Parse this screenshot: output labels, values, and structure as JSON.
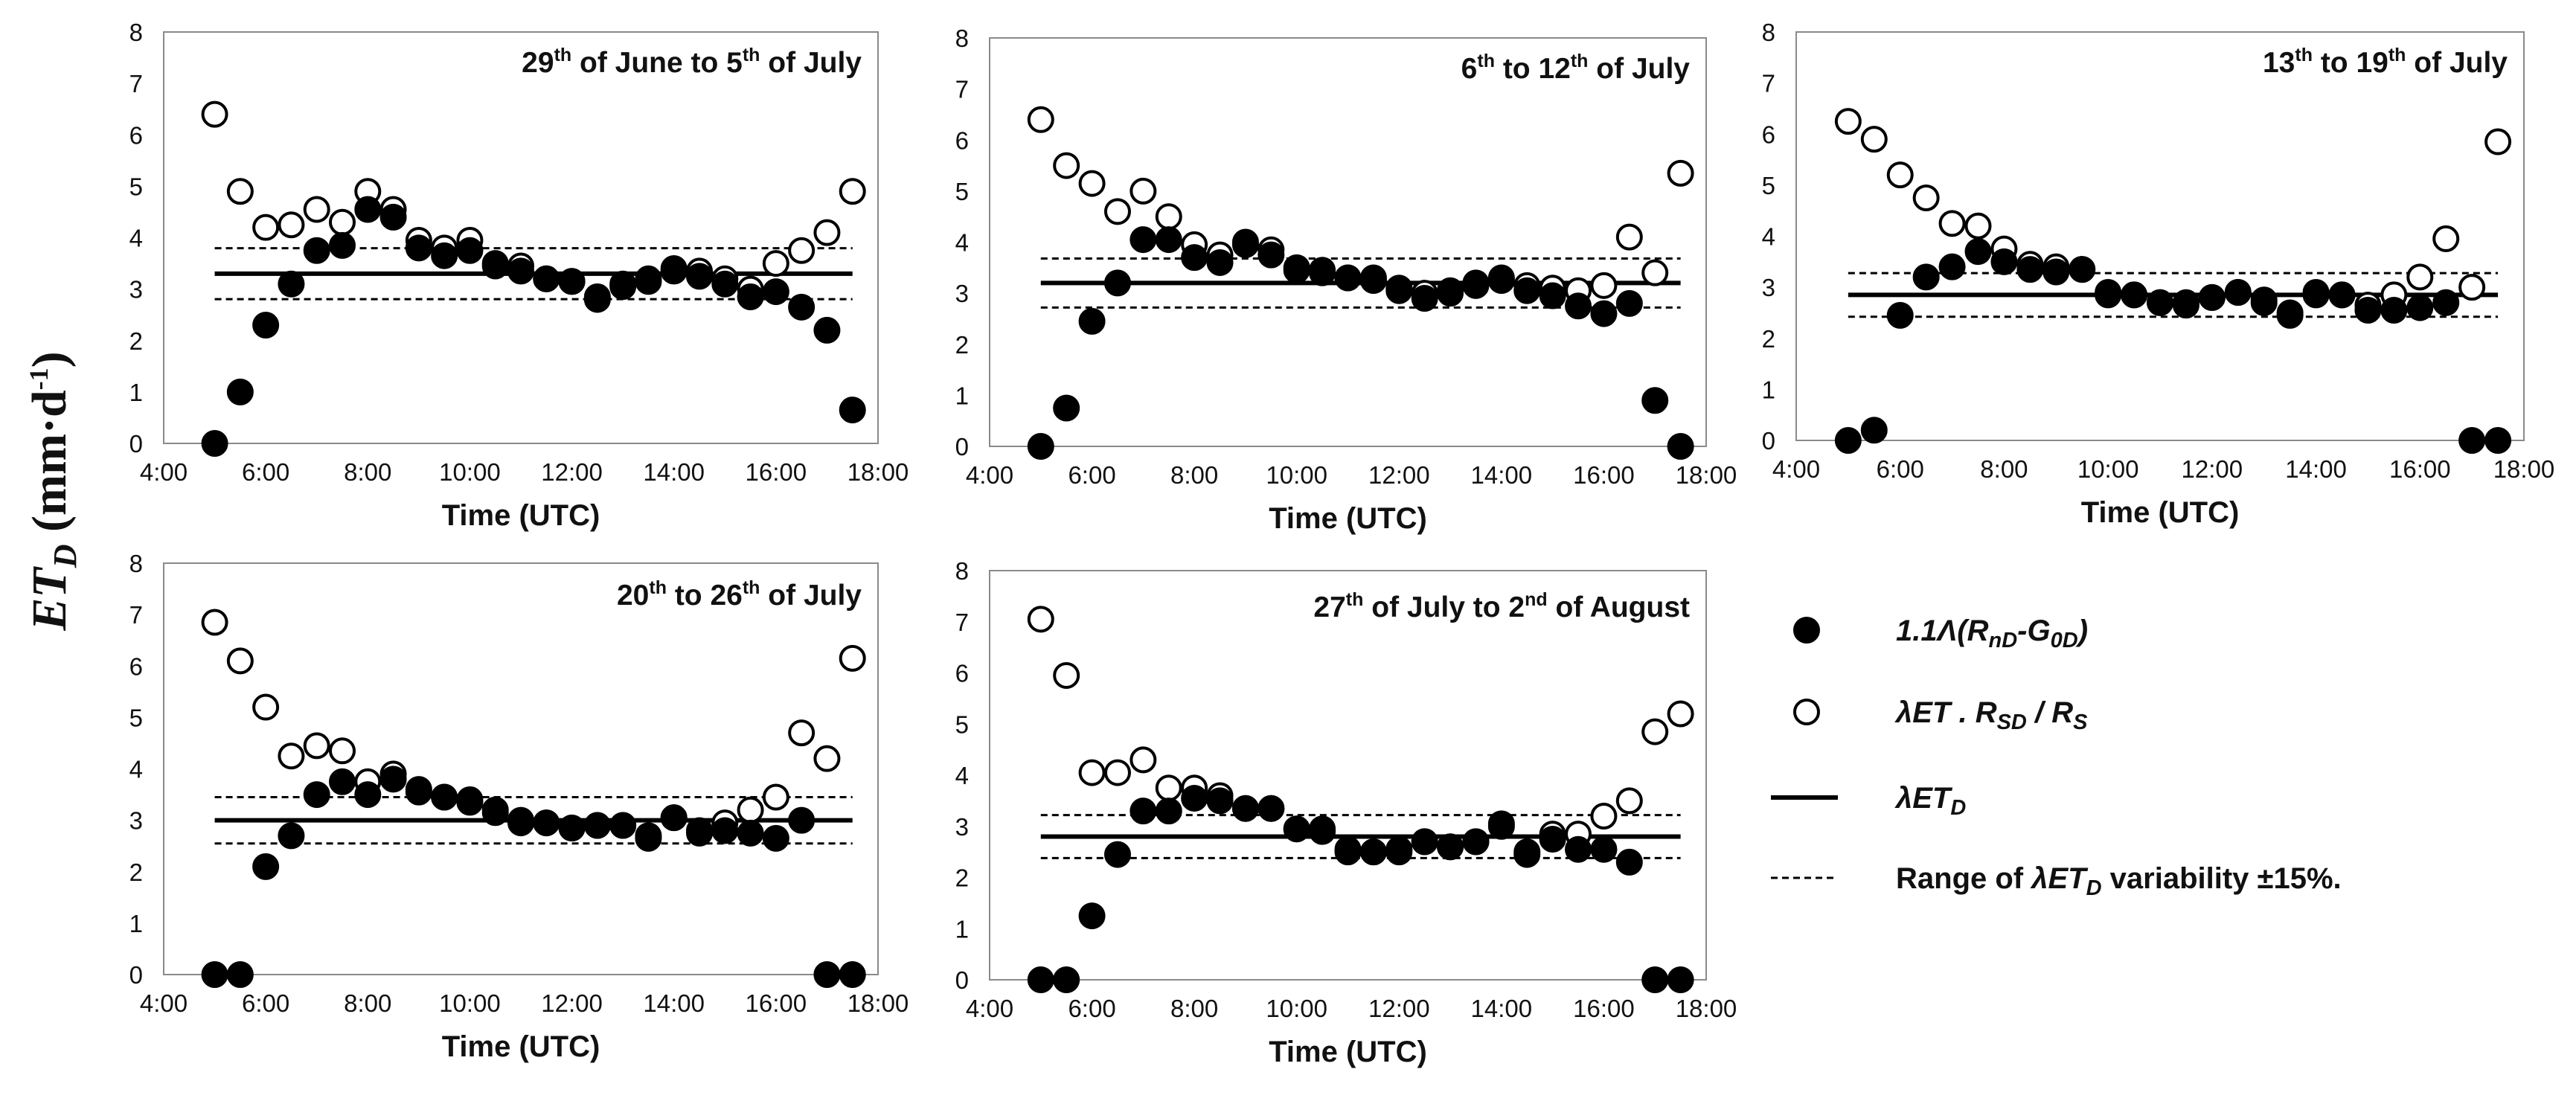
{
  "figure": {
    "y_axis_label": {
      "main": "ET",
      "sub": "D",
      "open": " (mm·d",
      "sup": "-1",
      "close": ")"
    },
    "legend": {
      "filled_label_parts": [
        "1.1",
        "Λ(R",
        "nD",
        "-G",
        "0D",
        ")"
      ],
      "open_label_parts": [
        "λET . R",
        "SD",
        " / R",
        "S"
      ],
      "line_label_parts": [
        "λET",
        "D"
      ],
      "dashed_label_parts": [
        "Range of ",
        "λET",
        "D",
        " variability ±15%."
      ]
    }
  },
  "chart_data": [
    {
      "type": "scatter",
      "title_parts": [
        "29",
        "th",
        " of June to 5",
        "th",
        " of July"
      ],
      "xlabel": "Time (UTC)",
      "x_ticks": [
        "4:00",
        "6:00",
        "8:00",
        "10:00",
        "12:00",
        "14:00",
        "16:00",
        "18:00"
      ],
      "y_ticks": [
        "0",
        "1",
        "2",
        "3",
        "4",
        "5",
        "6",
        "7",
        "8"
      ],
      "xlim": [
        4,
        18
      ],
      "ylim": [
        0,
        8
      ],
      "et_d": 3.3,
      "variability": 0.15,
      "series": [
        {
          "name": "1.1Λ(RnD-G0D)",
          "marker": "filled",
          "x": [
            5,
            5.5,
            6,
            6.5,
            7,
            7.5,
            8,
            8.5,
            9,
            9.5,
            10,
            10.5,
            11,
            11.5,
            12,
            12.5,
            13,
            13.5,
            14,
            14.5,
            15,
            15.5,
            16,
            16.5,
            17,
            17.5
          ],
          "y": [
            0,
            1.0,
            2.3,
            3.1,
            3.75,
            3.85,
            4.55,
            4.4,
            3.8,
            3.65,
            3.75,
            3.45,
            3.35,
            3.2,
            3.15,
            2.8,
            3.05,
            3.15,
            3.35,
            3.25,
            3.1,
            2.85,
            2.95,
            2.65,
            2.2,
            0.65
          ]
        },
        {
          "name": "λET·RSD/RS",
          "marker": "open",
          "x": [
            5,
            5.5,
            6,
            6.5,
            7,
            7.5,
            8,
            8.5,
            9,
            9.5,
            10,
            10.5,
            11,
            11.5,
            12,
            12.5,
            13,
            13.5,
            14,
            14.5,
            15,
            15.5,
            16,
            16.5,
            17,
            17.5
          ],
          "y": [
            6.4,
            4.9,
            4.2,
            4.25,
            4.55,
            4.3,
            4.9,
            4.55,
            3.95,
            3.8,
            3.95,
            3.5,
            3.45,
            3.2,
            3.15,
            2.85,
            3.1,
            3.2,
            3.4,
            3.35,
            3.2,
            3.0,
            3.5,
            3.75,
            4.1,
            4.9
          ]
        }
      ]
    },
    {
      "type": "scatter",
      "title_parts": [
        "6",
        "th",
        " to 12",
        "th",
        " of July"
      ],
      "xlabel": "Time (UTC)",
      "x_ticks": [
        "4:00",
        "6:00",
        "8:00",
        "10:00",
        "12:00",
        "14:00",
        "16:00",
        "18:00"
      ],
      "y_ticks": [
        "0",
        "1",
        "2",
        "3",
        "4",
        "5",
        "6",
        "7",
        "8"
      ],
      "xlim": [
        4,
        18
      ],
      "ylim": [
        0,
        8
      ],
      "et_d": 3.2,
      "variability": 0.15,
      "series": [
        {
          "name": "1.1Λ(RnD-G0D)",
          "marker": "filled",
          "x": [
            5,
            5.5,
            6,
            6.5,
            7,
            7.5,
            8,
            8.5,
            9,
            9.5,
            10,
            10.5,
            11,
            11.5,
            12,
            12.5,
            13,
            13.5,
            14,
            14.5,
            15,
            15.5,
            16,
            16.5,
            17,
            17.5
          ],
          "y": [
            0,
            0.75,
            2.45,
            3.2,
            4.05,
            4.05,
            3.7,
            3.6,
            4.0,
            3.75,
            3.45,
            3.4,
            3.3,
            3.25,
            3.05,
            2.9,
            3.0,
            3.15,
            3.25,
            3.05,
            2.95,
            2.75,
            2.6,
            2.8,
            0.9,
            0
          ]
        },
        {
          "name": "λET·RSD/RS",
          "marker": "open",
          "x": [
            5,
            5.5,
            6,
            6.5,
            7,
            7.5,
            8,
            8.5,
            9,
            9.5,
            10,
            10.5,
            11,
            11.5,
            12,
            12.5,
            13,
            13.5,
            14,
            14.5,
            15,
            15.5,
            16,
            16.5,
            17,
            17.5
          ],
          "y": [
            6.4,
            5.5,
            5.15,
            4.6,
            5.0,
            4.5,
            3.95,
            3.75,
            3.95,
            3.85,
            3.5,
            3.45,
            3.3,
            3.3,
            3.1,
            3.0,
            3.05,
            3.2,
            3.3,
            3.15,
            3.1,
            3.05,
            3.15,
            4.1,
            3.4,
            5.35
          ]
        }
      ]
    },
    {
      "type": "scatter",
      "title_parts": [
        "13",
        "th",
        " to 19",
        "th",
        " of July"
      ],
      "xlabel": "Time (UTC)",
      "x_ticks": [
        "4:00",
        "6:00",
        "8:00",
        "10:00",
        "12:00",
        "14:00",
        "16:00",
        "18:00"
      ],
      "y_ticks": [
        "0",
        "1",
        "2",
        "3",
        "4",
        "5",
        "6",
        "7",
        "8"
      ],
      "xlim": [
        4,
        18
      ],
      "ylim": [
        0,
        8
      ],
      "et_d": 2.85,
      "variability": 0.15,
      "series": [
        {
          "name": "1.1Λ(RnD-G0D)",
          "marker": "filled",
          "x": [
            5,
            5.5,
            6,
            6.5,
            7,
            7.5,
            8,
            8.5,
            9,
            9.5,
            10,
            10.5,
            11,
            11.5,
            12,
            12.5,
            13,
            13.5,
            14,
            14.5,
            15,
            15.5,
            16,
            16.5,
            17,
            17.5
          ],
          "y": [
            0,
            0.2,
            2.45,
            3.2,
            3.4,
            3.7,
            3.5,
            3.35,
            3.3,
            3.35,
            2.85,
            2.85,
            2.7,
            2.65,
            2.8,
            2.9,
            2.7,
            2.45,
            2.85,
            2.85,
            2.55,
            2.55,
            2.6,
            2.7,
            0,
            0
          ]
        },
        {
          "name": "λET·RSD/RS",
          "marker": "open",
          "x": [
            5,
            5.5,
            6,
            6.5,
            7,
            7.5,
            8,
            8.5,
            9,
            9.5,
            10,
            10.5,
            11,
            11.5,
            12,
            12.5,
            13,
            13.5,
            14,
            14.5,
            15,
            15.5,
            16,
            16.5,
            17,
            17.5
          ],
          "y": [
            6.25,
            5.9,
            5.2,
            4.75,
            4.25,
            4.2,
            3.75,
            3.45,
            3.4,
            3.35,
            2.9,
            2.85,
            2.7,
            2.7,
            2.8,
            2.9,
            2.75,
            2.5,
            2.9,
            2.85,
            2.65,
            2.85,
            3.2,
            3.95,
            3.0,
            5.85
          ]
        }
      ]
    },
    {
      "type": "scatter",
      "title_parts": [
        "20",
        "th",
        " to 26",
        "th",
        " of July"
      ],
      "xlabel": "Time (UTC)",
      "x_ticks": [
        "4:00",
        "6:00",
        "8:00",
        "10:00",
        "12:00",
        "14:00",
        "16:00",
        "18:00"
      ],
      "y_ticks": [
        "0",
        "1",
        "2",
        "3",
        "4",
        "5",
        "6",
        "7",
        "8"
      ],
      "xlim": [
        4,
        18
      ],
      "ylim": [
        0,
        8
      ],
      "et_d": 3.0,
      "variability": 0.15,
      "series": [
        {
          "name": "1.1Λ(RnD-G0D)",
          "marker": "filled",
          "x": [
            5,
            5.5,
            6,
            6.5,
            7,
            7.5,
            8,
            8.5,
            9,
            9.5,
            10,
            10.5,
            11,
            11.5,
            12,
            12.5,
            13,
            13.5,
            14,
            14.5,
            15,
            15.5,
            16,
            16.5,
            17,
            17.5
          ],
          "y": [
            0,
            0,
            2.1,
            2.7,
            3.5,
            3.75,
            3.5,
            3.8,
            3.55,
            3.45,
            3.35,
            3.15,
            2.95,
            2.95,
            2.85,
            2.9,
            2.9,
            2.65,
            3.05,
            2.75,
            2.8,
            2.75,
            2.65,
            3.0,
            0,
            0
          ]
        },
        {
          "name": "λET·RSD/RS",
          "marker": "open",
          "x": [
            5,
            5.5,
            6,
            6.5,
            7,
            7.5,
            8,
            8.5,
            9,
            9.5,
            10,
            10.5,
            11,
            11.5,
            12,
            12.5,
            13,
            13.5,
            14,
            14.5,
            15,
            15.5,
            16,
            16.5,
            17,
            17.5
          ],
          "y": [
            6.85,
            6.1,
            5.2,
            4.25,
            4.45,
            4.35,
            3.75,
            3.9,
            3.6,
            3.45,
            3.4,
            3.2,
            3.0,
            2.95,
            2.85,
            2.9,
            2.9,
            2.7,
            3.05,
            2.8,
            2.95,
            3.2,
            3.45,
            4.7,
            4.2,
            6.15
          ]
        }
      ]
    },
    {
      "type": "scatter",
      "title_parts": [
        "27",
        "th",
        " of July to 2",
        "nd",
        " of August"
      ],
      "xlabel": "Time (UTC)",
      "x_ticks": [
        "4:00",
        "6:00",
        "8:00",
        "10:00",
        "12:00",
        "14:00",
        "16:00",
        "18:00"
      ],
      "y_ticks": [
        "0",
        "1",
        "2",
        "3",
        "4",
        "5",
        "6",
        "7",
        "8"
      ],
      "xlim": [
        4,
        18
      ],
      "ylim": [
        0,
        8
      ],
      "et_d": 2.8,
      "variability": 0.15,
      "series": [
        {
          "name": "1.1Λ(RnD-G0D)",
          "marker": "filled",
          "x": [
            5,
            5.5,
            6,
            6.5,
            7,
            7.5,
            8,
            8.5,
            9,
            9.5,
            10,
            10.5,
            11,
            11.5,
            12,
            12.5,
            13,
            13.5,
            14,
            14.5,
            15,
            15.5,
            16,
            16.5,
            17,
            17.5
          ],
          "y": [
            0,
            0,
            1.25,
            2.45,
            3.3,
            3.3,
            3.55,
            3.5,
            3.35,
            3.35,
            2.95,
            2.95,
            2.5,
            2.5,
            2.5,
            2.7,
            2.6,
            2.7,
            3.05,
            2.45,
            2.75,
            2.55,
            2.55,
            2.3,
            0,
            0
          ]
        },
        {
          "name": "λET·RSD/RS",
          "marker": "open",
          "x": [
            5,
            5.5,
            6,
            6.5,
            7,
            7.5,
            8,
            8.5,
            9,
            9.5,
            10,
            10.5,
            11,
            11.5,
            12,
            12.5,
            13,
            13.5,
            14,
            14.5,
            15,
            15.5,
            16,
            16.5,
            17,
            17.5
          ],
          "y": [
            7.05,
            5.95,
            4.05,
            4.05,
            4.3,
            3.75,
            3.75,
            3.6,
            3.35,
            3.35,
            2.95,
            2.9,
            2.55,
            2.5,
            2.55,
            2.7,
            2.6,
            2.7,
            3.0,
            2.5,
            2.85,
            2.85,
            3.2,
            3.5,
            4.85,
            5.2
          ]
        }
      ]
    }
  ]
}
